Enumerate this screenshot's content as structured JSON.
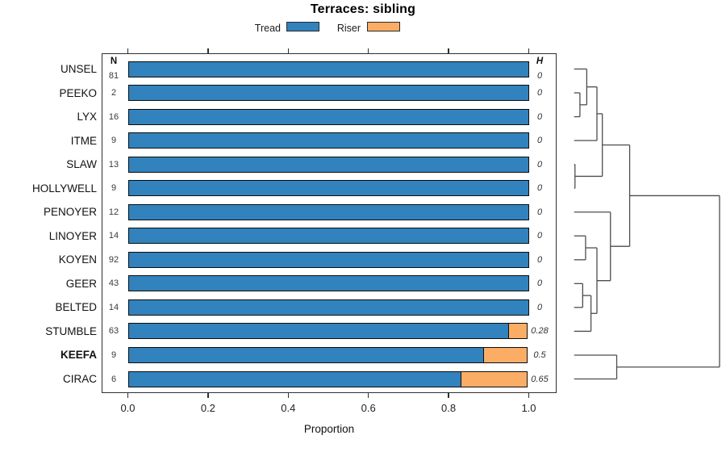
{
  "title": "Terraces: sibling",
  "legend": [
    {
      "label": "Tread",
      "color": "#3182BD"
    },
    {
      "label": "Riser",
      "color": "#FBAD66"
    }
  ],
  "columns": {
    "n_header": "N",
    "h_header": "H"
  },
  "axis": {
    "xlabel": "Proportion",
    "tick_labels": [
      "0.0",
      "0.2",
      "0.4",
      "0.6",
      "0.8",
      "1.0"
    ],
    "tick_values": [
      0,
      0.2,
      0.4,
      0.6,
      0.8,
      1.0
    ]
  },
  "colors": {
    "tread": "#3182BD",
    "riser": "#FBAD66",
    "bar_border": "#0d0d0d",
    "dendrogram_line": "#4d4d4d"
  },
  "chart_data": {
    "type": "bar",
    "orientation": "horizontal-stacked",
    "title": "Terraces: sibling",
    "xlabel": "Proportion",
    "xlim": [
      0,
      1
    ],
    "grid": false,
    "legend_position": "top",
    "series_names": [
      "Tread",
      "Riser"
    ],
    "rows": [
      {
        "label": "UNSEL",
        "n": 81,
        "h": "0",
        "tread": 1.0,
        "riser": 0.0,
        "bold": false
      },
      {
        "label": "PEEKO",
        "n": 2,
        "h": "0",
        "tread": 1.0,
        "riser": 0.0,
        "bold": false
      },
      {
        "label": "LYX",
        "n": 16,
        "h": "0",
        "tread": 1.0,
        "riser": 0.0,
        "bold": false
      },
      {
        "label": "ITME",
        "n": 9,
        "h": "0",
        "tread": 1.0,
        "riser": 0.0,
        "bold": false
      },
      {
        "label": "SLAW",
        "n": 13,
        "h": "0",
        "tread": 1.0,
        "riser": 0.0,
        "bold": false
      },
      {
        "label": "HOLLYWELL",
        "n": 9,
        "h": "0",
        "tread": 1.0,
        "riser": 0.0,
        "bold": false
      },
      {
        "label": "PENOYER",
        "n": 12,
        "h": "0",
        "tread": 1.0,
        "riser": 0.0,
        "bold": false
      },
      {
        "label": "LINOYER",
        "n": 14,
        "h": "0",
        "tread": 1.0,
        "riser": 0.0,
        "bold": false
      },
      {
        "label": "KOYEN",
        "n": 92,
        "h": "0",
        "tread": 1.0,
        "riser": 0.0,
        "bold": false
      },
      {
        "label": "GEER",
        "n": 43,
        "h": "0",
        "tread": 1.0,
        "riser": 0.0,
        "bold": false
      },
      {
        "label": "BELTED",
        "n": 14,
        "h": "0",
        "tread": 1.0,
        "riser": 0.0,
        "bold": false
      },
      {
        "label": "STUMBLE",
        "n": 63,
        "h": "0.28",
        "tread": 0.952,
        "riser": 0.048,
        "bold": false
      },
      {
        "label": "KEEFA",
        "n": 9,
        "h": "0.5",
        "tread": 0.889,
        "riser": 0.111,
        "bold": true
      },
      {
        "label": "CIRAC",
        "n": 6,
        "h": "0.65",
        "tread": 0.833,
        "riser": 0.167,
        "bold": false
      }
    ],
    "dendrogram": {
      "d": 1.0,
      "children": [
        {
          "d": 0.382,
          "children": [
            {
              "d": 0.194,
              "children": [
                {
                  "d": 0.157,
                  "children": [
                    {
                      "d": 0.087,
                      "children": [
                        {
                          "leaf": "UNSEL"
                        },
                        {
                          "d": 0.04,
                          "children": [
                            {
                              "leaf": "PEEKO"
                            },
                            {
                              "leaf": "LYX"
                            }
                          ]
                        }
                      ]
                    },
                    {
                      "leaf": "ITME"
                    }
                  ]
                },
                {
                  "d": 0.006,
                  "children": [
                    {
                      "leaf": "SLAW"
                    },
                    {
                      "leaf": "HOLLYWELL"
                    }
                  ]
                }
              ]
            },
            {
              "d": 0.25,
              "children": [
                {
                  "leaf": "PENOYER"
                },
                {
                  "d": 0.157,
                  "children": [
                    {
                      "d": 0.079,
                      "children": [
                        {
                          "leaf": "LINOYER"
                        },
                        {
                          "leaf": "KOYEN"
                        }
                      ]
                    },
                    {
                      "d": 0.116,
                      "children": [
                        {
                          "d": 0.059,
                          "children": [
                            {
                              "leaf": "GEER"
                            },
                            {
                              "leaf": "BELTED"
                            }
                          ]
                        },
                        {
                          "leaf": "STUMBLE"
                        }
                      ]
                    }
                  ]
                }
              ]
            }
          ]
        },
        {
          "d": 0.293,
          "children": [
            {
              "leaf": "KEEFA"
            },
            {
              "leaf": "CIRAC"
            }
          ]
        }
      ]
    }
  }
}
